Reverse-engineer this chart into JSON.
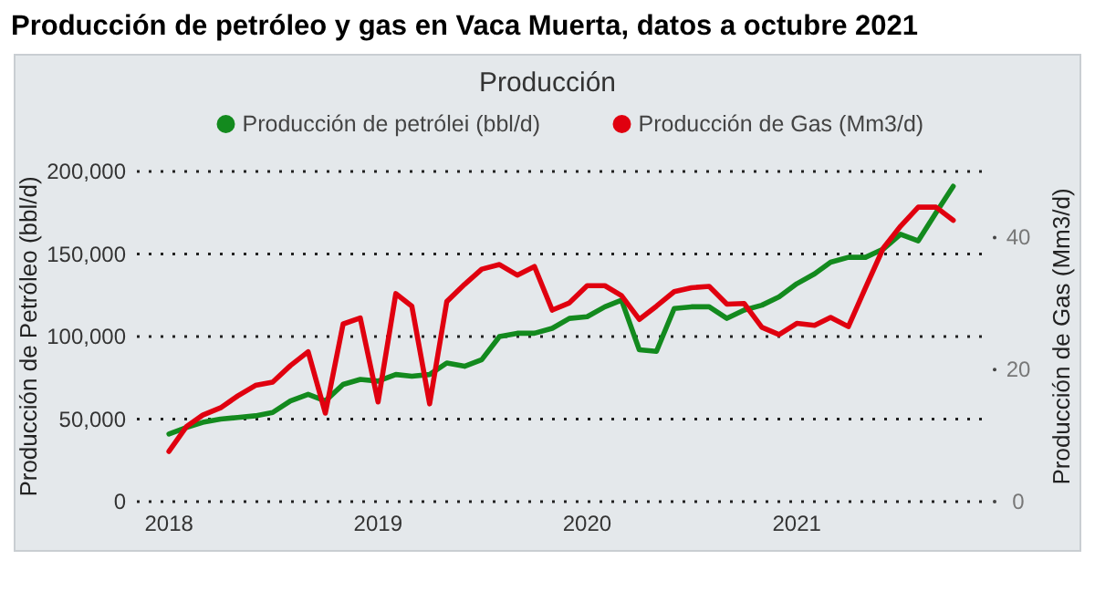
{
  "chart_data": {
    "type": "line",
    "title": "Producción de petróleo y gas en Vaca Muerta, datos a octubre 2021",
    "subtitle": "Producción",
    "ylabel": "Producción de Petróleo (bbl/d)",
    "y2label": "Producción de Gas (Mm3/d)",
    "x": [
      "2018-01",
      "2018-02",
      "2018-03",
      "2018-04",
      "2018-05",
      "2018-06",
      "2018-07",
      "2018-08",
      "2018-09",
      "2018-10",
      "2018-11",
      "2018-12",
      "2019-01",
      "2019-02",
      "2019-03",
      "2019-04",
      "2019-05",
      "2019-06",
      "2019-07",
      "2019-08",
      "2019-09",
      "2019-10",
      "2019-11",
      "2019-12",
      "2020-01",
      "2020-02",
      "2020-03",
      "2020-04",
      "2020-05",
      "2020-06",
      "2020-07",
      "2020-08",
      "2020-09",
      "2020-10",
      "2020-11",
      "2020-12",
      "2021-01",
      "2021-02",
      "2021-03",
      "2021-04",
      "2021-05",
      "2021-06",
      "2021-07",
      "2021-08",
      "2021-09",
      "2021-10"
    ],
    "series": [
      {
        "name": "Producción de petrólei (bbl/d)",
        "color": "#138a1e",
        "values": [
          41000,
          45000,
          48000,
          50000,
          51000,
          52000,
          54000,
          61000,
          65000,
          61000,
          71000,
          74000,
          73000,
          77000,
          76000,
          77000,
          84000,
          82000,
          86000,
          100000,
          102000,
          102000,
          105000,
          111000,
          112000,
          118000,
          122000,
          92000,
          91000,
          117000,
          118000,
          118000,
          111000,
          116000,
          119000,
          124000,
          132000,
          138000,
          145000,
          148000,
          148000,
          153000,
          162000,
          158000,
          175000,
          191000
        ]
      },
      {
        "name": "Producción de Gas (Mm3/d)",
        "color": "#e0000f",
        "axis": "y2",
        "values": [
          7.6,
          11.4,
          13.1,
          14.2,
          16.0,
          17.6,
          18.1,
          20.6,
          22.7,
          13.4,
          26.9,
          27.8,
          15.1,
          31.5,
          29.6,
          14.8,
          30.3,
          32.9,
          35.2,
          35.9,
          34.3,
          35.6,
          29.0,
          30.1,
          32.7,
          32.7,
          31.2,
          27.6,
          29.6,
          31.8,
          32.4,
          32.6,
          29.9,
          30.0,
          26.4,
          25.3,
          27.0,
          26.7,
          27.9,
          26.5,
          32.4,
          38.4,
          41.7,
          44.6,
          44.6,
          42.6
        ]
      }
    ],
    "xlim": [
      "2017-11-06",
      "2021-11-20"
    ],
    "xticks": [
      "2018",
      "2019",
      "2020",
      "2021"
    ],
    "ylim": [
      0,
      200000
    ],
    "yticks": [
      {
        "value": 0,
        "label": "0"
      },
      {
        "value": 50000,
        "label": "50,000"
      },
      {
        "value": 100000,
        "label": "100,000"
      },
      {
        "value": 150000,
        "label": "150,000"
      },
      {
        "value": 200000,
        "label": "200,000"
      }
    ],
    "y2lim": [
      0,
      50
    ],
    "y2ticks": [
      0,
      20,
      40
    ],
    "grid": "y",
    "legend": "top",
    "marker": "none",
    "line_style": "solid"
  }
}
